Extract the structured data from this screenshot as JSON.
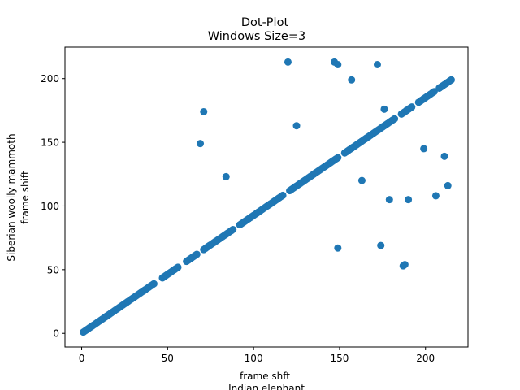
{
  "chart_data": {
    "type": "scatter",
    "title": "Dot-Plot",
    "subtitle": "Windows Size=3",
    "xlabel_line1": "frame shft",
    "xlabel_line2": "Indian elephant",
    "ylabel_line1": "Siberian woolly mammoth",
    "ylabel_line2": "frame shift",
    "xlim": [
      -9.7,
      224.7
    ],
    "ylim": [
      -10.7,
      224.7
    ],
    "xticks": [
      0,
      50,
      100,
      150,
      200
    ],
    "yticks": [
      0,
      50,
      100,
      150,
      200
    ],
    "grid": false,
    "color": "#1f77b4",
    "diagonal": {
      "x_start": 1,
      "x_end": 215,
      "y_start": 1,
      "y_end": 199,
      "gaps_x": [
        [
          43,
          46
        ],
        [
          57,
          60
        ],
        [
          68,
          70
        ],
        [
          89,
          91
        ],
        [
          118,
          120
        ],
        [
          150,
          152
        ],
        [
          183,
          185
        ],
        [
          193,
          195
        ],
        [
          206,
          207
        ]
      ]
    },
    "outliers": [
      {
        "x": 69,
        "y": 149
      },
      {
        "x": 71,
        "y": 174
      },
      {
        "x": 84,
        "y": 123
      },
      {
        "x": 120,
        "y": 213
      },
      {
        "x": 125,
        "y": 163
      },
      {
        "x": 147,
        "y": 213
      },
      {
        "x": 149,
        "y": 211
      },
      {
        "x": 149,
        "y": 67
      },
      {
        "x": 157,
        "y": 199
      },
      {
        "x": 163,
        "y": 120
      },
      {
        "x": 172,
        "y": 211
      },
      {
        "x": 174,
        "y": 69
      },
      {
        "x": 176,
        "y": 176
      },
      {
        "x": 179,
        "y": 105
      },
      {
        "x": 187,
        "y": 53
      },
      {
        "x": 188,
        "y": 54
      },
      {
        "x": 189,
        "y": 175
      },
      {
        "x": 190,
        "y": 105
      },
      {
        "x": 199,
        "y": 145
      },
      {
        "x": 206,
        "y": 108
      },
      {
        "x": 211,
        "y": 139
      },
      {
        "x": 213,
        "y": 116
      }
    ]
  }
}
